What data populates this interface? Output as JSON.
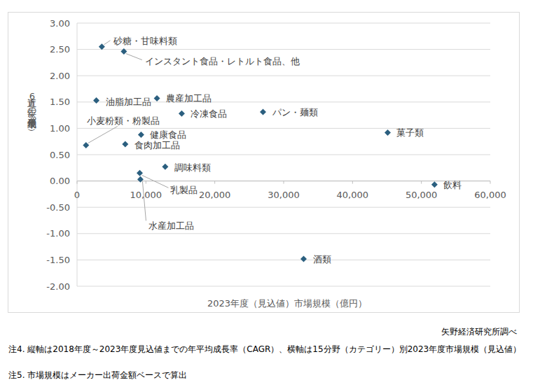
{
  "chart_data": {
    "type": "scatter",
    "x_label": "2023年度（見込値）市場規模（億円）",
    "y_label": "直近6年の年平均成長率（%）",
    "source": "矢野経済研究所調べ",
    "notes": [
      "注4. 縦軸は2018年度～2023年度見込値までの年平均成長率（CAGR）、横軸は15分野（カテゴリー）別2023年度市場規模（見込値）",
      "注5. 市場規模はメーカー出荷金額ベースで算出"
    ],
    "labels": [
      "砂糖・甘味料類",
      "インスタント食品・レトルト食品、他",
      "油脂加工品",
      "農産加工品",
      "冷凍食品",
      "パン・麺類",
      "菓子類",
      "小麦粉類・粉製品",
      "健康食品",
      "食肉加工品",
      "調味料類",
      "乳製品",
      "水産加工品",
      "飲料",
      "酒類"
    ],
    "x": [
      3600,
      6800,
      2800,
      11600,
      15200,
      27000,
      45100,
      1300,
      9300,
      7000,
      12800,
      9100,
      9200,
      51900,
      32900
    ],
    "values": [
      2.55,
      2.46,
      1.53,
      1.57,
      1.28,
      1.31,
      0.92,
      0.68,
      0.88,
      0.7,
      0.27,
      0.15,
      0.03,
      -0.07,
      -1.48
    ],
    "color": "#2b5f7f",
    "marker": "diamond",
    "grid": true,
    "xlim": [
      0,
      60000
    ],
    "ylim": [
      -2,
      3
    ],
    "xticks": [
      0,
      {
        "value": 10000,
        "label": "10,000"
      },
      {
        "value": 20000,
        "label": "20,000"
      },
      {
        "value": 30000,
        "label": "30,000"
      },
      {
        "value": 40000,
        "label": "40,000"
      },
      {
        "value": 50000,
        "label": "50,000"
      },
      {
        "value": 60000,
        "label": "60,000"
      }
    ],
    "yticks": [
      {
        "value": -2,
        "label": "-2.00"
      },
      {
        "value": -1.5,
        "label": "-1.50"
      },
      {
        "value": -1,
        "label": "-1.00"
      },
      {
        "value": -0.5,
        "label": "-0.50"
      },
      {
        "value": 0,
        "label": "0.00"
      },
      {
        "value": 0.5,
        "label": "0.50"
      },
      {
        "value": 1,
        "label": "1.00"
      },
      {
        "value": 1.5,
        "label": "1.50"
      },
      {
        "value": 2,
        "label": "2.00"
      },
      {
        "value": 2.5,
        "label": "2.50"
      },
      {
        "value": 3,
        "label": "3.00"
      }
    ]
  }
}
